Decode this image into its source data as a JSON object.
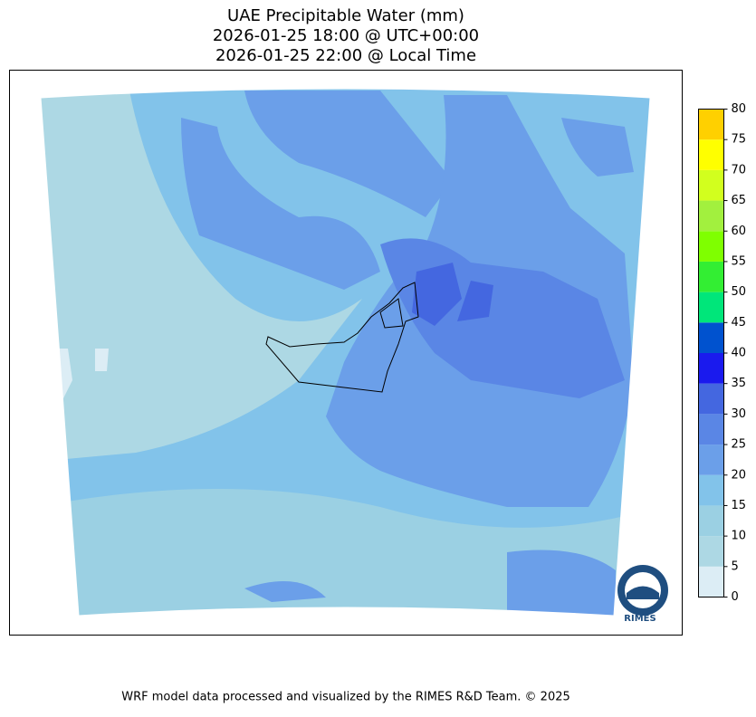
{
  "title": [
    "UAE Precipitable Water (mm)",
    "2026-01-25 18:00 @ UTC+00:00",
    "2026-01-25 22:00 @ Local Time"
  ],
  "colorbar": {
    "levels": [
      0,
      5,
      10,
      15,
      20,
      25,
      30,
      35,
      40,
      45,
      50,
      55,
      60,
      65,
      70,
      75,
      80
    ],
    "colors": [
      "#dcedf5",
      "#add8e4",
      "#9bd0e3",
      "#82c3ea",
      "#6b9fe9",
      "#5a86e5",
      "#4467e0",
      "#1a1aee",
      "#0052cf",
      "#00e67a",
      "#33ee33",
      "#7fff00",
      "#a2f03e",
      "#d2ff1e",
      "#ffff00",
      "#ffd000"
    ]
  },
  "logo": {
    "text": "RIMES"
  },
  "footer": "WRF model data processed and visualized by the RIMES R&D Team. © 2025"
}
